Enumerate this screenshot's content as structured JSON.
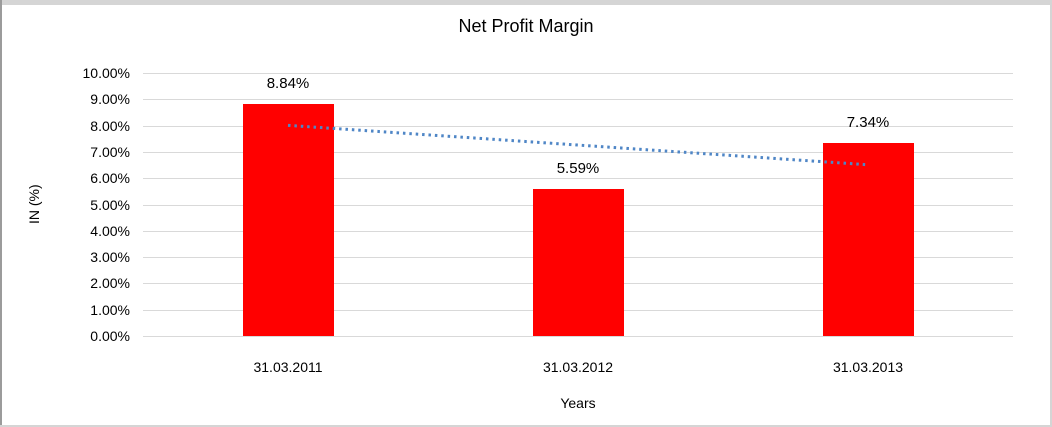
{
  "frame": {
    "top_color": "#d5d5d5",
    "left_color": "#9b9b9b",
    "side_color": "#d5d5d5"
  },
  "chart_data": {
    "type": "bar",
    "title": "Net Profit Margin",
    "categories": [
      "31.03.2011",
      "31.03.2012",
      "31.03.2013"
    ],
    "values": [
      8.84,
      5.59,
      7.34
    ],
    "data_labels": [
      "8.84%",
      "5.59%",
      "7.34%"
    ],
    "xlabel": "Years",
    "ylabel": "IN (%)",
    "ylim": [
      0,
      10
    ],
    "ytick_step": 1,
    "ytick_labels": [
      "0.00%",
      "1.00%",
      "2.00%",
      "3.00%",
      "4.00%",
      "5.00%",
      "6.00%",
      "7.00%",
      "8.00%",
      "9.00%",
      "10.00%"
    ],
    "grid": true,
    "legend": "none",
    "bar_color": "#ff0000",
    "gridline_color": "#d9d9d9",
    "trendline": {
      "type": "linear",
      "style": "dotted",
      "color": "#4f86c6",
      "start_value": 8.01,
      "end_value": 6.51
    }
  }
}
